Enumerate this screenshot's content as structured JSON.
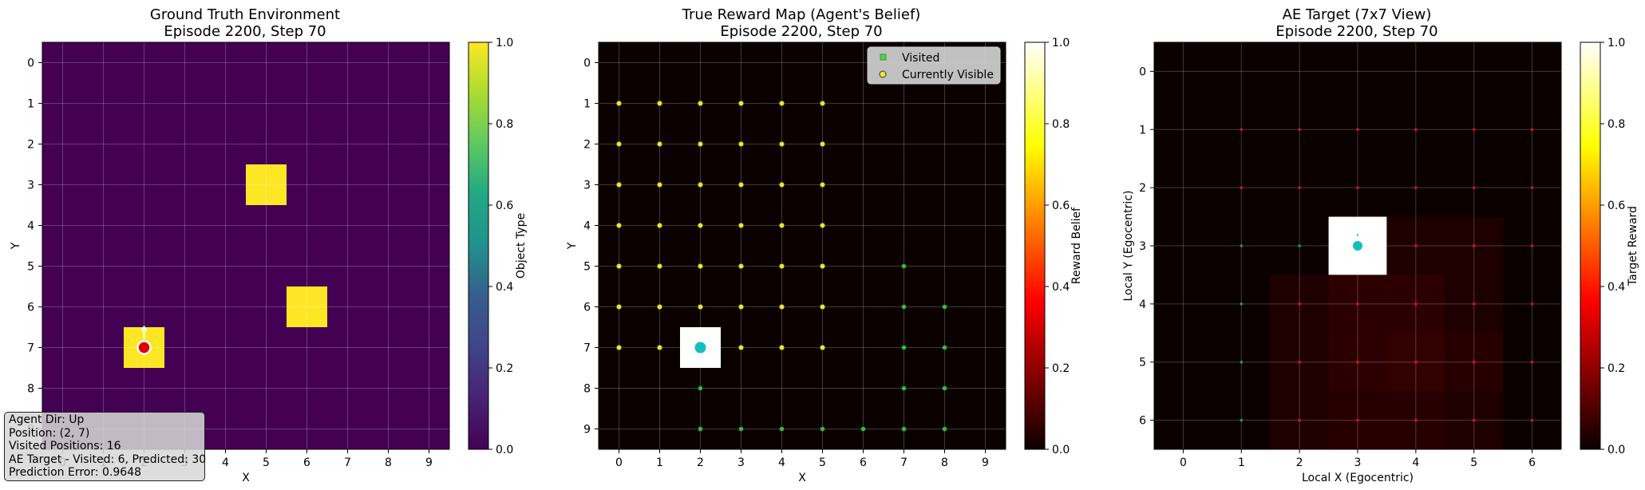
{
  "panels": [
    {
      "title_line1": "Ground Truth Environment",
      "title_line2": "Episode 2200, Step 70",
      "xlabel": "X",
      "ylabel": "Y",
      "x_ticks": [
        "0",
        "1",
        "2",
        "3",
        "4",
        "5",
        "6",
        "7",
        "8",
        "9"
      ],
      "y_ticks": [
        "0",
        "1",
        "2",
        "3",
        "4",
        "5",
        "6",
        "7",
        "8",
        "9"
      ],
      "colorbar_label": "Object Type",
      "colorbar_ticks": [
        "0.0",
        "0.2",
        "0.4",
        "0.6",
        "0.8",
        "1.0"
      ]
    },
    {
      "title_line1": "True Reward Map (Agent's Belief)",
      "title_line2": "Episode 2200, Step 70",
      "xlabel": "X",
      "ylabel": "Y",
      "x_ticks": [
        "0",
        "1",
        "2",
        "3",
        "4",
        "5",
        "6",
        "7",
        "8",
        "9"
      ],
      "y_ticks": [
        "0",
        "1",
        "2",
        "3",
        "4",
        "5",
        "6",
        "7",
        "8",
        "9"
      ],
      "colorbar_label": "Reward Belief",
      "colorbar_ticks": [
        "0.0",
        "0.2",
        "0.4",
        "0.6",
        "0.8",
        "1.0"
      ],
      "legend": [
        "Visited",
        "Currently Visible"
      ]
    },
    {
      "title_line1": "AE Target (7x7 View)",
      "title_line2": "Episode 2200, Step 70",
      "xlabel": "Local X (Egocentric)",
      "ylabel": "Local Y (Egocentric)",
      "x_ticks": [
        "0",
        "1",
        "2",
        "3",
        "4",
        "5",
        "6"
      ],
      "y_ticks": [
        "0",
        "1",
        "2",
        "3",
        "4",
        "5",
        "6"
      ],
      "colorbar_label": "Target Reward",
      "colorbar_ticks": [
        "0.0",
        "0.2",
        "0.4",
        "0.6",
        "0.8",
        "1.0"
      ]
    }
  ],
  "info_box": {
    "line1": "Agent Dir: Up",
    "line2": "Position: (2, 7)",
    "line3": "Visited Positions: 16",
    "line4": "AE Target - Visited: 6, Predicted: 30",
    "line5": "Prediction Error: 0.9648"
  },
  "chart_data": [
    {
      "type": "heatmap",
      "title": "Ground Truth Environment\nEpisode 2200, Step 70",
      "xlabel": "X",
      "ylabel": "Y",
      "grid_size": [
        10,
        10
      ],
      "background_value": 0,
      "object_cells": [
        {
          "x": 5,
          "y": 3,
          "value": 1
        },
        {
          "x": 6,
          "y": 6,
          "value": 1
        },
        {
          "x": 2,
          "y": 7,
          "value": 1
        }
      ],
      "agent": {
        "x": 2,
        "y": 7,
        "dir": "up"
      },
      "colormap": "viridis",
      "clim": [
        0,
        1
      ],
      "colorbar_label": "Object Type",
      "grid": true
    },
    {
      "type": "heatmap",
      "title": "True Reward Map (Agent's Belief)\nEpisode 2200, Step 70",
      "xlabel": "X",
      "ylabel": "Y",
      "grid_size": [
        10,
        10
      ],
      "background_value": 0,
      "cells": [
        {
          "x": 2,
          "y": 7,
          "value": 1
        }
      ],
      "agent": {
        "x": 2,
        "y": 7
      },
      "visible_markers": {
        "xs": [
          0,
          1,
          2,
          3,
          4,
          5
        ],
        "ys": [
          1,
          2,
          3,
          4,
          5,
          6,
          7
        ]
      },
      "visited_markers": [
        [
          7,
          5
        ],
        [
          7,
          6
        ],
        [
          8,
          6
        ],
        [
          7,
          7
        ],
        [
          8,
          7
        ],
        [
          2,
          8
        ],
        [
          7,
          8
        ],
        [
          8,
          8
        ],
        [
          2,
          9
        ],
        [
          3,
          9
        ],
        [
          4,
          9
        ],
        [
          5,
          9
        ],
        [
          6,
          9
        ],
        [
          7,
          9
        ],
        [
          8,
          9
        ]
      ],
      "legend": [
        "Visited",
        "Currently Visible"
      ],
      "legend_position": "top-right",
      "colormap": "hot",
      "clim": [
        0,
        1
      ],
      "colorbar_label": "Reward Belief",
      "grid": true
    },
    {
      "type": "heatmap",
      "title": "AE Target (7x7 View)\nEpisode 2200, Step 70",
      "xlabel": "Local X (Egocentric)",
      "ylabel": "Local Y (Egocentric)",
      "grid_size": [
        7,
        7
      ],
      "background_value": 0,
      "cells": [
        {
          "x": 3,
          "y": 3,
          "value": 1
        },
        {
          "x": 4,
          "y": 3,
          "value": 0.03
        },
        {
          "x": 5,
          "y": 3,
          "value": 0.03
        },
        {
          "x": 2,
          "y": 4,
          "value": 0.03
        },
        {
          "x": 3,
          "y": 4,
          "value": 0.05
        },
        {
          "x": 4,
          "y": 4,
          "value": 0.05
        },
        {
          "x": 5,
          "y": 4,
          "value": 0.03
        },
        {
          "x": 2,
          "y": 5,
          "value": 0.03
        },
        {
          "x": 3,
          "y": 5,
          "value": 0.05
        },
        {
          "x": 4,
          "y": 5,
          "value": 0.06
        },
        {
          "x": 5,
          "y": 5,
          "value": 0.04
        },
        {
          "x": 2,
          "y": 6,
          "value": 0.03
        },
        {
          "x": 3,
          "y": 6,
          "value": 0.04
        },
        {
          "x": 4,
          "y": 6,
          "value": 0.04
        },
        {
          "x": 5,
          "y": 6,
          "value": 0.03
        }
      ],
      "agent": {
        "x": 3,
        "y": 3
      },
      "visited_markers": [
        [
          1,
          3
        ],
        [
          2,
          3
        ],
        [
          1,
          4
        ],
        [
          1,
          5
        ],
        [
          1,
          6
        ]
      ],
      "predicted_markers_xs": [
        1,
        2,
        3,
        4,
        5,
        6
      ],
      "predicted_markers_ys": [
        1,
        2,
        3,
        4,
        5,
        6
      ],
      "colormap": "hot",
      "clim": [
        0,
        1
      ],
      "colorbar_label": "Target Reward",
      "grid": true
    }
  ]
}
